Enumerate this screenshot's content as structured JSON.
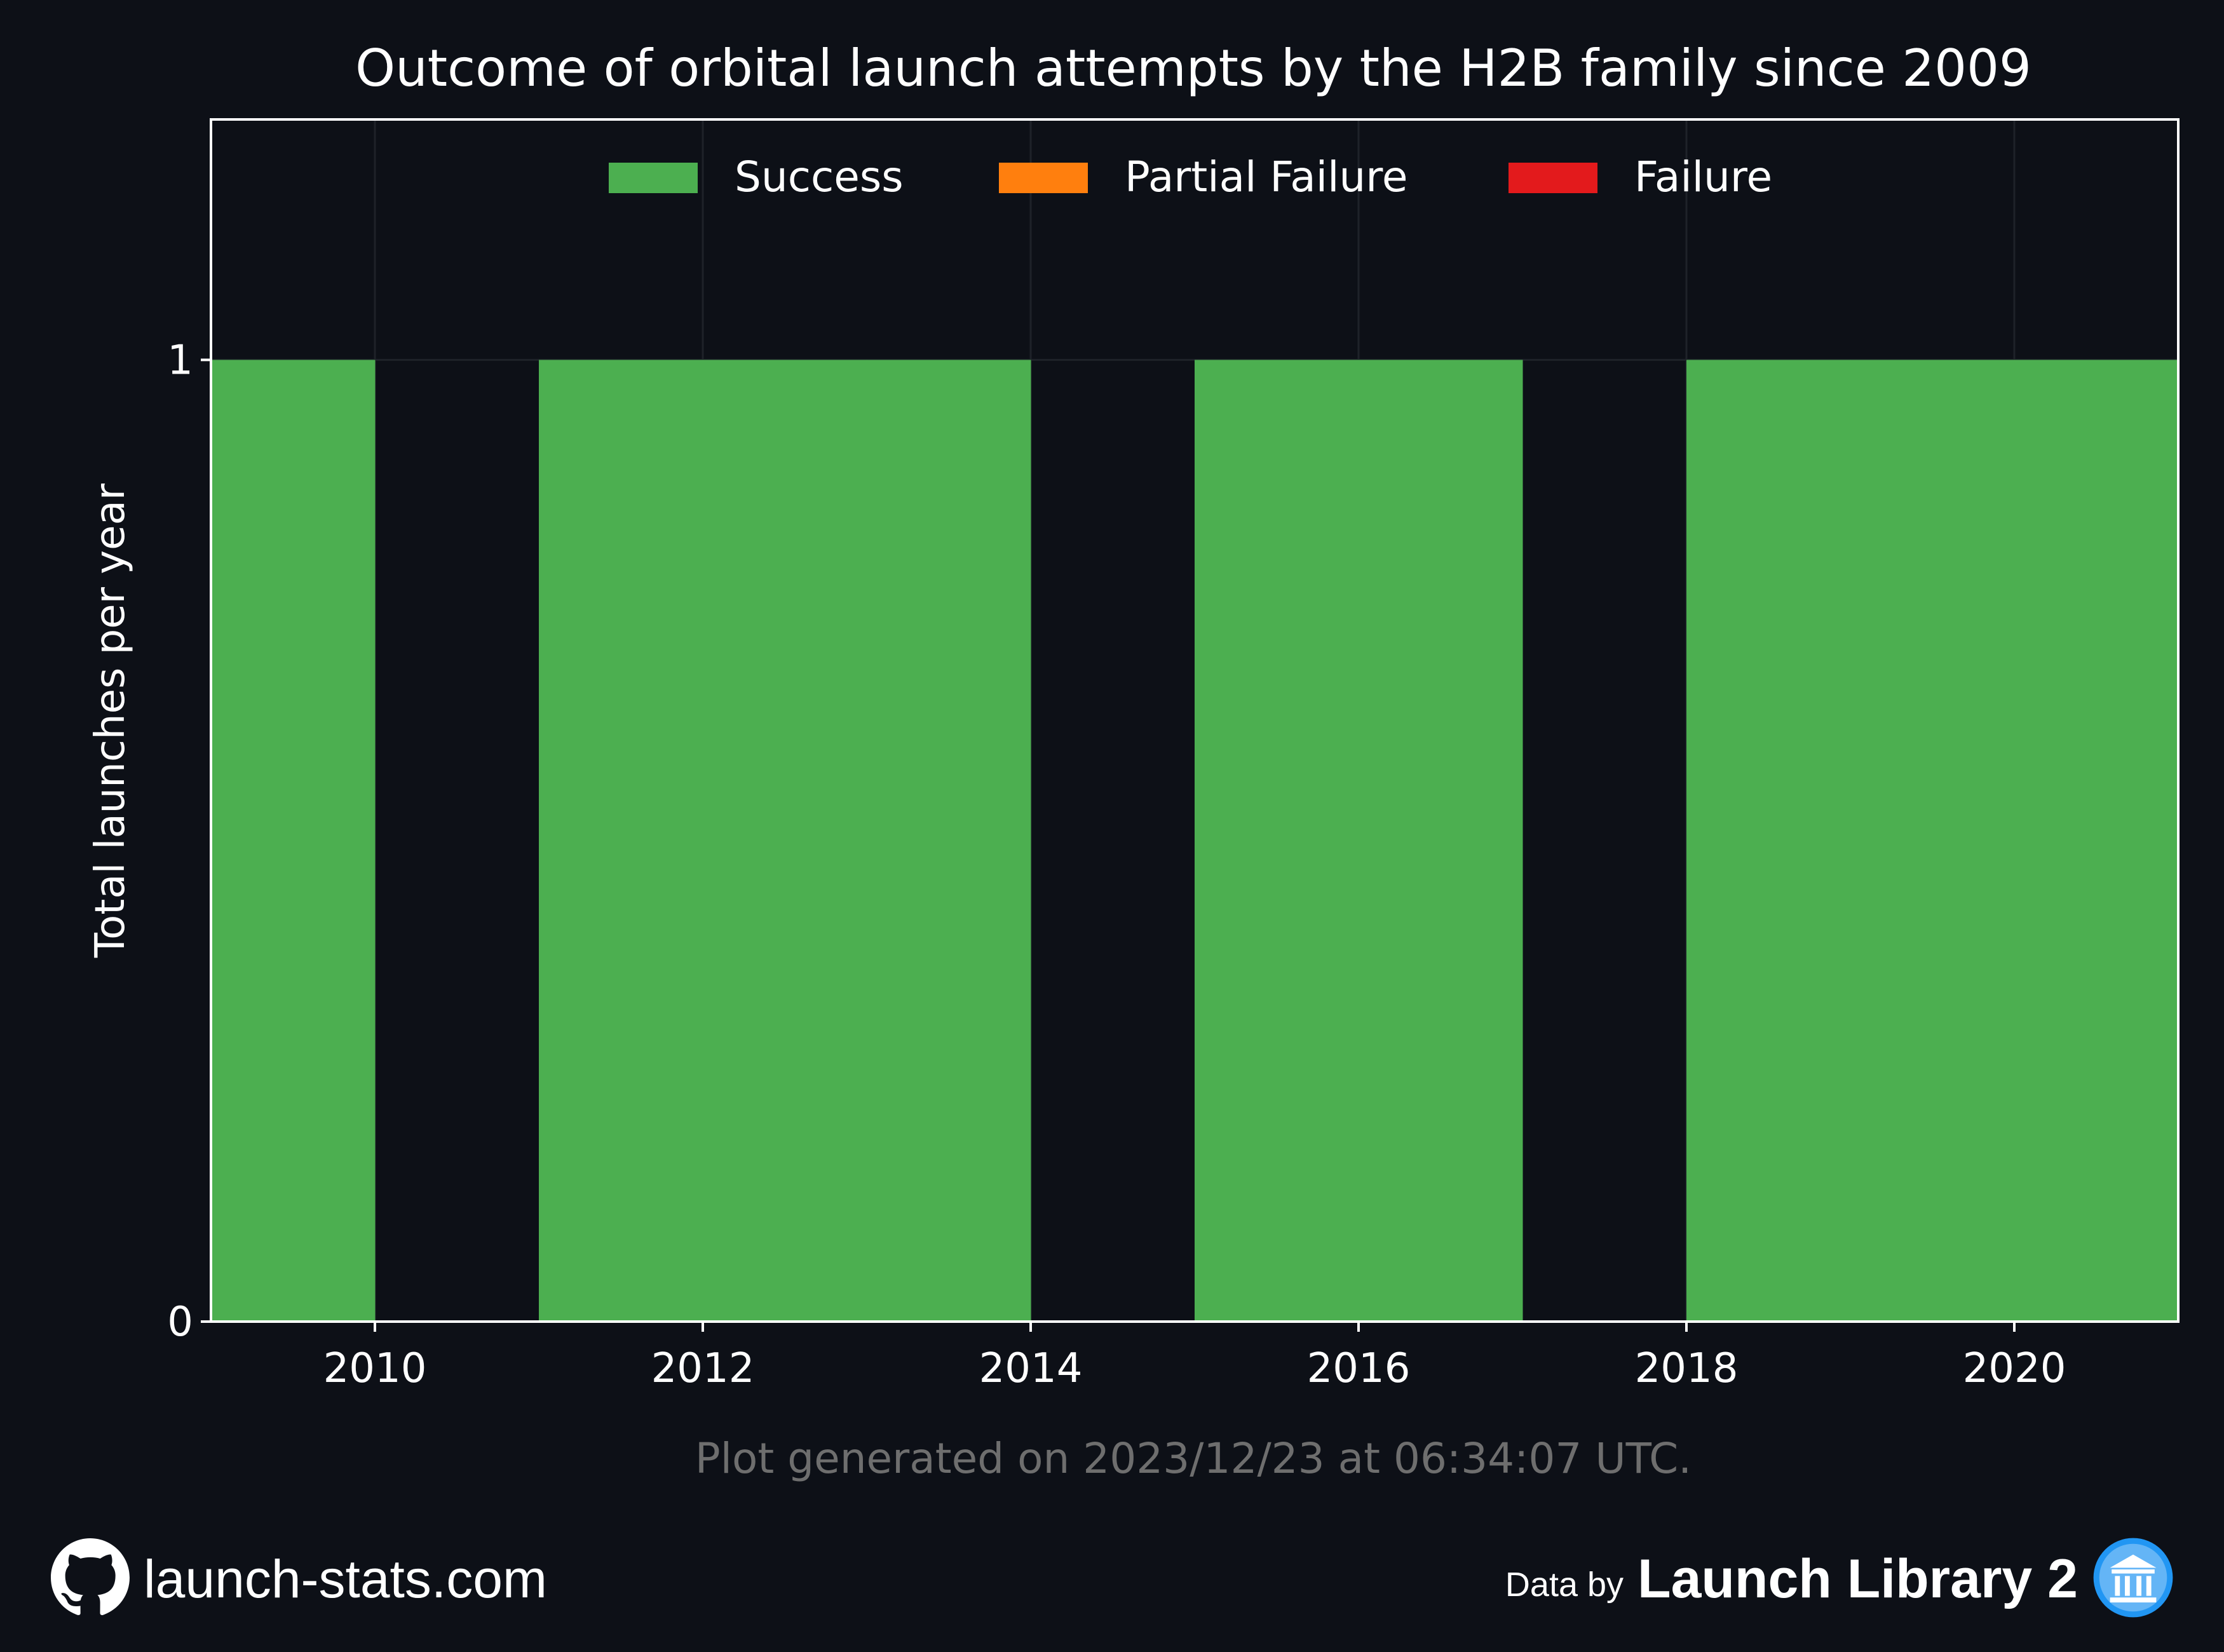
{
  "chart_data": {
    "type": "bar",
    "title": "Outcome of orbital launch attempts by the H2B family since 2009",
    "xlabel": "",
    "ylabel": "Total launches per year",
    "x": [
      2009,
      2010,
      2011,
      2012,
      2013,
      2014,
      2015,
      2016,
      2017,
      2018,
      2019,
      2020
    ],
    "xlim": [
      2009,
      2021
    ],
    "ylim": [
      0,
      1.25
    ],
    "xticks": [
      2010,
      2012,
      2014,
      2016,
      2018,
      2020
    ],
    "yticks": [
      0,
      1
    ],
    "stacked": true,
    "grid": true,
    "legend_position": "top-center",
    "series": [
      {
        "name": "Success",
        "color": "#4caf50",
        "values": [
          1,
          0,
          1,
          1,
          1,
          0,
          1,
          1,
          0,
          1,
          1,
          1
        ]
      },
      {
        "name": "Partial Failure",
        "color": "#ff7f0e",
        "values": [
          0,
          0,
          0,
          0,
          0,
          0,
          0,
          0,
          0,
          0,
          0,
          0
        ]
      },
      {
        "name": "Failure",
        "color": "#e31a1c",
        "values": [
          0,
          0,
          0,
          0,
          0,
          0,
          0,
          0,
          0,
          0,
          0,
          0
        ]
      }
    ],
    "annotation": "Plot generated on 2023/12/23 at 06:34:07 UTC."
  },
  "footer": {
    "site": "launch-stats.com",
    "data_by": "Data by",
    "library": "Launch Library 2",
    "site_icon": "github-icon",
    "library_icon": "launch-library-icon"
  },
  "colors": {
    "background": "#0d1017",
    "text": "#ffffff",
    "muted_text": "#6e6e6e"
  }
}
